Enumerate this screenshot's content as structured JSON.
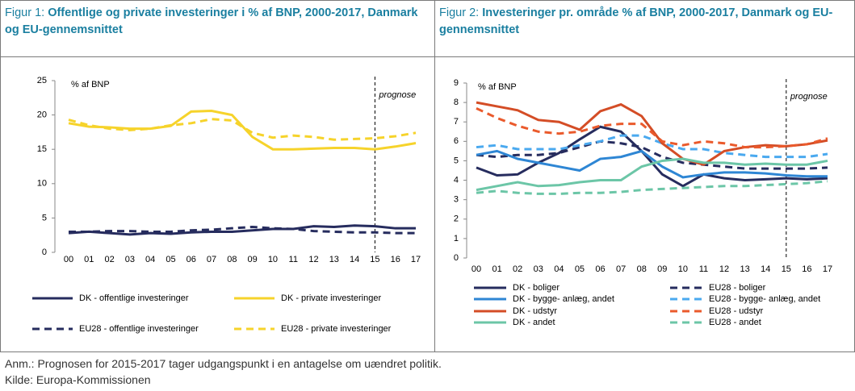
{
  "chart_data": [
    {
      "type": "line",
      "label": "Figur 1:",
      "title": "Offentlige og private investeringer i % af BNP, 2000-2017, Danmark og EU-gennemsnittet",
      "y_label": "% af BNP",
      "annotation": {
        "text": "prognose",
        "x": "15"
      },
      "categories": [
        "00",
        "01",
        "02",
        "03",
        "04",
        "05",
        "06",
        "07",
        "08",
        "09",
        "10",
        "11",
        "12",
        "13",
        "14",
        "15",
        "16",
        "17"
      ],
      "ylim": [
        0,
        25
      ],
      "yticks": [
        0,
        5,
        10,
        15,
        20,
        25
      ],
      "legend": "bottom",
      "series": [
        {
          "name": "DK - offentlige investeringer",
          "color": "#262c5e",
          "line_style": "solid",
          "values": [
            2.8,
            3.0,
            2.8,
            2.6,
            2.8,
            2.7,
            2.9,
            3.0,
            3.0,
            3.2,
            3.4,
            3.4,
            3.8,
            3.7,
            3.9,
            3.8,
            3.5,
            3.5
          ]
        },
        {
          "name": "DK - private investeringer",
          "color": "#f6d32b",
          "line_style": "solid",
          "values": [
            18.8,
            18.3,
            18.2,
            18.0,
            18.0,
            18.4,
            20.5,
            20.6,
            20.0,
            16.8,
            15.0,
            15.0,
            15.1,
            15.2,
            15.2,
            15.0,
            15.4,
            15.9
          ]
        },
        {
          "name": "EU28 - offentlige investeringer",
          "color": "#262c5e",
          "line_style": "dashed",
          "values": [
            3.0,
            3.0,
            3.1,
            3.1,
            3.0,
            3.0,
            3.2,
            3.3,
            3.5,
            3.7,
            3.5,
            3.4,
            3.1,
            3.0,
            2.9,
            2.9,
            2.8,
            2.8
          ]
        },
        {
          "name": "EU28 - private investeringer",
          "color": "#f6d32b",
          "line_style": "dashed",
          "values": [
            19.3,
            18.5,
            18.0,
            17.8,
            18.0,
            18.5,
            18.8,
            19.4,
            19.2,
            17.4,
            16.7,
            17.0,
            16.8,
            16.4,
            16.5,
            16.6,
            16.9,
            17.4
          ]
        }
      ]
    },
    {
      "type": "line",
      "label": "Figur 2:",
      "title": "Investeringer pr. område % af BNP, 2000-2017, Danmark og EU-gennemsnittet",
      "y_label": "% af BNP",
      "annotation": {
        "text": "prognose",
        "x": "15"
      },
      "categories": [
        "00",
        "01",
        "02",
        "03",
        "04",
        "05",
        "06",
        "07",
        "08",
        "09",
        "10",
        "11",
        "12",
        "13",
        "14",
        "15",
        "16",
        "17"
      ],
      "ylim": [
        0,
        9
      ],
      "yticks": [
        0,
        1,
        2,
        3,
        4,
        5,
        6,
        7,
        8,
        9
      ],
      "legend": "bottom",
      "series": [
        {
          "name": "DK - boliger",
          "color": "#262c5e",
          "line_style": "solid",
          "values": [
            4.65,
            4.25,
            4.3,
            4.9,
            5.4,
            6.1,
            6.75,
            6.5,
            5.5,
            4.3,
            3.7,
            4.3,
            4.1,
            4.0,
            4.05,
            4.1,
            4.05,
            4.1
          ]
        },
        {
          "name": "EU28 - boliger",
          "color": "#262c5e",
          "line_style": "dashed",
          "values": [
            5.3,
            5.2,
            5.3,
            5.3,
            5.4,
            5.7,
            6.0,
            5.9,
            5.7,
            5.2,
            4.9,
            4.8,
            4.7,
            4.6,
            4.6,
            4.6,
            4.6,
            4.65
          ]
        },
        {
          "name": "DK - bygge- anlæg, andet",
          "color": "#2e86d4",
          "line_style": "solid",
          "values": [
            5.3,
            5.5,
            5.1,
            4.9,
            4.7,
            4.5,
            5.1,
            5.2,
            5.5,
            4.7,
            4.15,
            4.3,
            4.4,
            4.4,
            4.35,
            4.25,
            4.2,
            4.2
          ]
        },
        {
          "name": "EU28 - bygge- anlæg, andet",
          "color": "#4aa9ef",
          "line_style": "dashed",
          "values": [
            5.7,
            5.8,
            5.6,
            5.6,
            5.6,
            5.8,
            6.0,
            6.3,
            6.3,
            5.9,
            5.6,
            5.6,
            5.4,
            5.3,
            5.2,
            5.2,
            5.2,
            5.35
          ]
        },
        {
          "name": "DK -  udstyr",
          "color": "#d44d26",
          "line_style": "solid",
          "values": [
            8.0,
            7.8,
            7.6,
            7.1,
            7.0,
            6.6,
            7.55,
            7.9,
            7.3,
            5.9,
            5.1,
            4.8,
            5.5,
            5.7,
            5.8,
            5.75,
            5.85,
            6.05
          ]
        },
        {
          "name": "EU28 - udstyr",
          "color": "#ea5a2c",
          "line_style": "dashed",
          "values": [
            7.7,
            7.2,
            6.8,
            6.5,
            6.4,
            6.5,
            6.8,
            6.9,
            6.9,
            6.0,
            5.8,
            6.0,
            5.9,
            5.7,
            5.7,
            5.75,
            5.85,
            6.15
          ]
        },
        {
          "name": "DK - andet",
          "color": "#6cc6a7",
          "line_style": "solid",
          "values": [
            3.5,
            3.7,
            3.9,
            3.7,
            3.75,
            3.9,
            4.0,
            4.0,
            4.7,
            5.0,
            5.1,
            4.9,
            4.9,
            4.8,
            4.85,
            4.8,
            4.8,
            5.0
          ]
        },
        {
          "name": "EU28 - andet",
          "color": "#6cc6a7",
          "line_style": "dashed",
          "values": [
            3.35,
            3.45,
            3.35,
            3.3,
            3.3,
            3.35,
            3.35,
            3.4,
            3.5,
            3.55,
            3.6,
            3.65,
            3.7,
            3.7,
            3.75,
            3.8,
            3.85,
            3.95
          ]
        }
      ]
    }
  ],
  "notes": [
    "Anm.: Prognosen for 2015-2017 tager udgangspunkt i en antagelse om uændret politik.",
    "Kilde: Europa-Kommissionen"
  ]
}
